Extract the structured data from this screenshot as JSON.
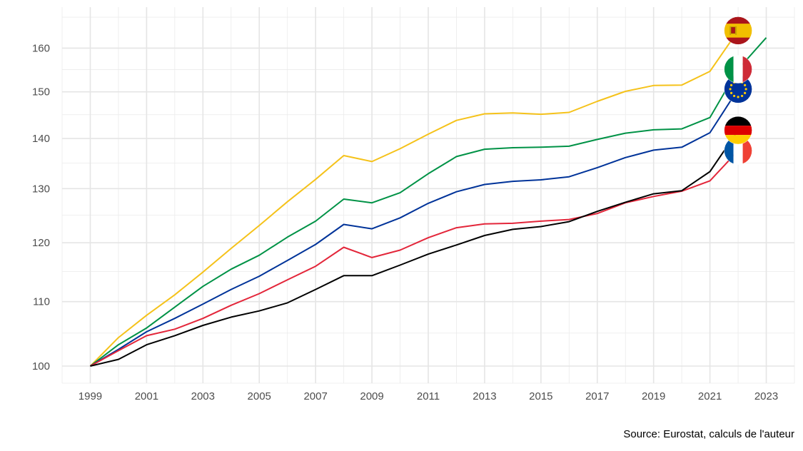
{
  "chart_data": {
    "type": "line",
    "x": [
      1999,
      2000,
      2001,
      2002,
      2003,
      2004,
      2005,
      2006,
      2007,
      2008,
      2009,
      2010,
      2011,
      2012,
      2013,
      2014,
      2015,
      2016,
      2017,
      2018,
      2019,
      2020,
      2021,
      2022,
      2023
    ],
    "x_ticks": [
      1999,
      2001,
      2003,
      2005,
      2007,
      2009,
      2011,
      2013,
      2015,
      2017,
      2019,
      2021,
      2023
    ],
    "y_ticks": [
      100,
      110,
      120,
      130,
      140,
      150,
      160
    ],
    "y_scale": "log",
    "ylim": [
      97.5,
      170
    ],
    "xlim": [
      1998,
      2024
    ],
    "grid": true,
    "legend": "none; series identified by flag icons at line ends",
    "series": [
      {
        "flag": "spain-flag-icon",
        "color": "#F5C21A",
        "values": [
          100,
          104.3,
          107.8,
          111.1,
          114.9,
          119,
          123.1,
          127.5,
          131.8,
          136.5,
          135.3,
          137.9,
          140.9,
          143.8,
          145.2,
          145.4,
          145.1,
          145.5,
          147.9,
          150.1,
          151.4,
          151.5,
          154.6,
          164.2,
          null
        ]
      },
      {
        "flag": "italy-flag-icon",
        "color": "#009246",
        "values": [
          100,
          103.2,
          105.8,
          109.1,
          112.5,
          115.4,
          117.8,
          121,
          123.9,
          128,
          127.3,
          129.2,
          132.9,
          136.3,
          137.8,
          138.1,
          138.2,
          138.4,
          139.8,
          141.1,
          141.8,
          142,
          144.4,
          155.1,
          162.5
        ]
      },
      {
        "flag": "eu-flag-icon",
        "color": "#003399",
        "values": [
          100,
          102.5,
          105.2,
          107.3,
          109.6,
          112,
          114.2,
          116.9,
          119.7,
          123.3,
          122.5,
          124.5,
          127.2,
          129.4,
          130.8,
          131.4,
          131.7,
          132.3,
          134.1,
          136.1,
          137.6,
          138.2,
          141.2,
          150.6,
          null
        ]
      },
      {
        "flag": "france-flag-icon",
        "color": "#E3263A",
        "values": [
          100,
          102.3,
          104.6,
          105.6,
          107.3,
          109.4,
          111.3,
          113.6,
          115.9,
          119.2,
          117.4,
          118.7,
          120.9,
          122.7,
          123.4,
          123.5,
          123.9,
          124.2,
          125.3,
          127.3,
          128.5,
          129.5,
          131.5,
          137.5,
          null
        ]
      },
      {
        "flag": "germany-flag-icon",
        "color": "#000000",
        "values": [
          100,
          101,
          103.2,
          104.6,
          106.2,
          107.5,
          108.5,
          109.8,
          112,
          114.3,
          114.3,
          116.1,
          118,
          119.6,
          121.3,
          122.4,
          122.9,
          123.8,
          125.7,
          127.4,
          129,
          129.6,
          133.3,
          141.7,
          null
        ]
      }
    ]
  },
  "caption": "Source: Eurostat, calculs de l'auteur"
}
